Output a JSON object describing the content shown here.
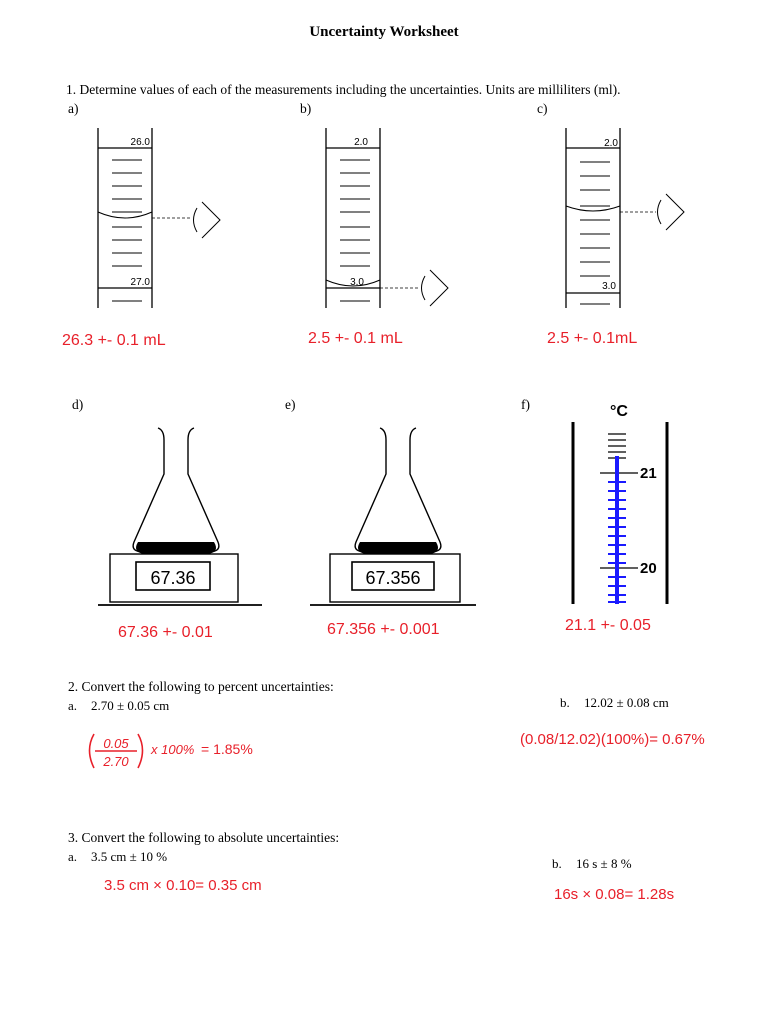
{
  "title": "Uncertainty Worksheet",
  "q1": {
    "prompt": "1. Determine values of each of the measurements including the uncertainties. Units are milliliters (ml).",
    "a": {
      "label": "a)",
      "top": "26.0",
      "bottom": "27.0",
      "answer": "26.3 +- 0.1 mL"
    },
    "b": {
      "label": "b)",
      "top": "2.0",
      "bottom": "3.0",
      "answer": "2.5 +- 0.1 mL"
    },
    "c": {
      "label": "c)",
      "top": "2.0",
      "bottom": "3.0",
      "answer": "2.5 +- 0.1mL"
    },
    "d": {
      "label": "d)",
      "reading": "67.36",
      "answer": "67.36 +- 0.01"
    },
    "e": {
      "label": "e)",
      "reading": "67.356",
      "answer": "67.356 +- 0.001"
    },
    "f": {
      "label": "f)",
      "unit": "°C",
      "upper": "21",
      "lower": "20",
      "answer": "21.1 +- 0.05"
    }
  },
  "q2": {
    "prompt": "2. Convert the following to percent uncertainties:",
    "a": {
      "label": "a.",
      "text": "2.70 ± 0.05 cm",
      "num": "0.05",
      "den": "2.70",
      "times": "x 100%",
      "result": "= 1.85%"
    },
    "b": {
      "label": "b.",
      "text": "12.02 ± 0.08 cm",
      "answer": "(0.08/12.02)(100%)= 0.67%"
    }
  },
  "q3": {
    "prompt": "3. Convert the following to absolute uncertainties:",
    "a": {
      "label": "a.",
      "text": "3.5 cm ± 10 %",
      "answer": "3.5 cm × 0.10= 0.35 cm"
    },
    "b": {
      "label": "b.",
      "text": "16 s ± 8 %",
      "answer": "16s × 0.08= 1.28s"
    }
  },
  "colors": {
    "answer": "#e8202a",
    "thermometer": "#1a1aff"
  }
}
